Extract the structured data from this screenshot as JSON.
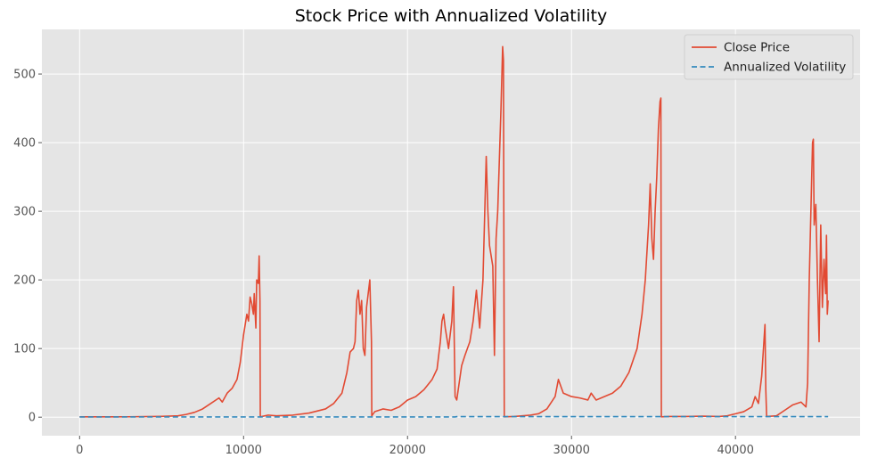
{
  "chart_data": {
    "type": "line",
    "title": "Stock Price with Annualized Volatility",
    "xlabel": "",
    "ylabel": "",
    "xlim": [
      -2300,
      47600
    ],
    "ylim": [
      -27,
      565
    ],
    "xticks": [
      0,
      10000,
      20000,
      30000,
      40000
    ],
    "yticks": [
      0,
      100,
      200,
      300,
      400,
      500
    ],
    "grid": true,
    "legend_position": "top-right",
    "colors": {
      "close": "#E24A33",
      "volatility": "#348ABD",
      "background": "#E5E5E5"
    },
    "series": [
      {
        "name": "Close Price",
        "style": "solid",
        "points": [
          [
            0,
            0.5
          ],
          [
            3000,
            0.6
          ],
          [
            5000,
            1.2
          ],
          [
            6000,
            2
          ],
          [
            6500,
            4
          ],
          [
            7000,
            7
          ],
          [
            7500,
            12
          ],
          [
            8000,
            20
          ],
          [
            8500,
            28
          ],
          [
            8700,
            22
          ],
          [
            9000,
            35
          ],
          [
            9300,
            42
          ],
          [
            9600,
            55
          ],
          [
            9800,
            80
          ],
          [
            10000,
            120
          ],
          [
            10100,
            135
          ],
          [
            10200,
            150
          ],
          [
            10300,
            140
          ],
          [
            10400,
            175
          ],
          [
            10500,
            165
          ],
          [
            10600,
            150
          ],
          [
            10650,
            180
          ],
          [
            10750,
            130
          ],
          [
            10800,
            200
          ],
          [
            10900,
            195
          ],
          [
            10950,
            235
          ],
          [
            11000,
            170
          ],
          [
            11020,
            0.5
          ],
          [
            11500,
            3
          ],
          [
            12000,
            2
          ],
          [
            13000,
            3
          ],
          [
            14000,
            6
          ],
          [
            15000,
            12
          ],
          [
            15500,
            20
          ],
          [
            16000,
            35
          ],
          [
            16300,
            65
          ],
          [
            16500,
            95
          ],
          [
            16700,
            100
          ],
          [
            16800,
            110
          ],
          [
            16900,
            170
          ],
          [
            17000,
            185
          ],
          [
            17100,
            150
          ],
          [
            17200,
            170
          ],
          [
            17300,
            100
          ],
          [
            17400,
            90
          ],
          [
            17500,
            160
          ],
          [
            17700,
            200
          ],
          [
            17800,
            110
          ],
          [
            17820,
            2
          ],
          [
            18000,
            8
          ],
          [
            18500,
            12
          ],
          [
            19000,
            10
          ],
          [
            19500,
            15
          ],
          [
            20000,
            25
          ],
          [
            20500,
            30
          ],
          [
            21000,
            40
          ],
          [
            21500,
            55
          ],
          [
            21800,
            70
          ],
          [
            22000,
            110
          ],
          [
            22100,
            140
          ],
          [
            22200,
            150
          ],
          [
            22300,
            130
          ],
          [
            22400,
            115
          ],
          [
            22500,
            100
          ],
          [
            22600,
            120
          ],
          [
            22700,
            140
          ],
          [
            22800,
            190
          ],
          [
            22900,
            30
          ],
          [
            23000,
            25
          ],
          [
            23300,
            75
          ],
          [
            23500,
            90
          ],
          [
            23800,
            110
          ],
          [
            24000,
            140
          ],
          [
            24200,
            185
          ],
          [
            24400,
            130
          ],
          [
            24600,
            200
          ],
          [
            24700,
            290
          ],
          [
            24800,
            380
          ],
          [
            24900,
            300
          ],
          [
            25000,
            250
          ],
          [
            25200,
            220
          ],
          [
            25300,
            90
          ],
          [
            25400,
            260
          ],
          [
            25500,
            300
          ],
          [
            25700,
            450
          ],
          [
            25800,
            540
          ],
          [
            25850,
            520
          ],
          [
            25900,
            0.5
          ],
          [
            26500,
            1
          ],
          [
            27000,
            2
          ],
          [
            27500,
            3
          ],
          [
            28000,
            5
          ],
          [
            28500,
            12
          ],
          [
            29000,
            30
          ],
          [
            29200,
            55
          ],
          [
            29500,
            35
          ],
          [
            30000,
            30
          ],
          [
            30500,
            28
          ],
          [
            31000,
            25
          ],
          [
            31200,
            35
          ],
          [
            31500,
            25
          ],
          [
            32000,
            30
          ],
          [
            32500,
            35
          ],
          [
            33000,
            45
          ],
          [
            33500,
            65
          ],
          [
            34000,
            100
          ],
          [
            34300,
            150
          ],
          [
            34500,
            200
          ],
          [
            34700,
            280
          ],
          [
            34800,
            340
          ],
          [
            34900,
            260
          ],
          [
            35000,
            230
          ],
          [
            35100,
            300
          ],
          [
            35200,
            350
          ],
          [
            35300,
            420
          ],
          [
            35400,
            460
          ],
          [
            35450,
            465
          ],
          [
            35480,
            0.5
          ],
          [
            36000,
            1
          ],
          [
            37000,
            1
          ],
          [
            38000,
            1.5
          ],
          [
            39000,
            1
          ],
          [
            39500,
            2
          ],
          [
            40000,
            5
          ],
          [
            40500,
            8
          ],
          [
            41000,
            15
          ],
          [
            41200,
            30
          ],
          [
            41400,
            20
          ],
          [
            41600,
            60
          ],
          [
            41800,
            135
          ],
          [
            41850,
            40
          ],
          [
            41900,
            1
          ],
          [
            42500,
            2
          ],
          [
            43000,
            10
          ],
          [
            43500,
            18
          ],
          [
            44000,
            22
          ],
          [
            44300,
            15
          ],
          [
            44400,
            50
          ],
          [
            44500,
            200
          ],
          [
            44600,
            300
          ],
          [
            44700,
            400
          ],
          [
            44750,
            405
          ],
          [
            44800,
            280
          ],
          [
            44900,
            310
          ],
          [
            45000,
            200
          ],
          [
            45100,
            110
          ],
          [
            45200,
            280
          ],
          [
            45300,
            160
          ],
          [
            45400,
            230
          ],
          [
            45500,
            180
          ],
          [
            45550,
            265
          ],
          [
            45600,
            150
          ],
          [
            45650,
            170
          ]
        ]
      },
      {
        "name": "Annualized Volatility",
        "style": "dashed",
        "points": [
          [
            0,
            0.3
          ],
          [
            22900,
            0.3
          ],
          [
            23000,
            0.8
          ],
          [
            45650,
            0.8
          ]
        ]
      }
    ]
  }
}
